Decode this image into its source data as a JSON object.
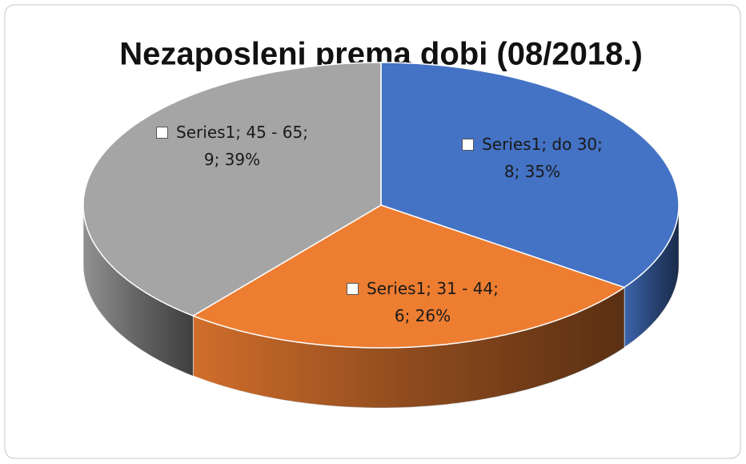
{
  "chart_data": {
    "type": "pie",
    "title": "Nezaposleni prema dobi (08/2018.)",
    "values": [
      8,
      6,
      9
    ],
    "value_labels": [
      "Series1; do 30; 8; 35%",
      "Series1; 31 - 44; 6; 26%",
      "Series1; 45 - 65; 9; 39%"
    ],
    "colors": [
      "#4472c4",
      "#ed7d31",
      "#a5a5a5"
    ]
  }
}
